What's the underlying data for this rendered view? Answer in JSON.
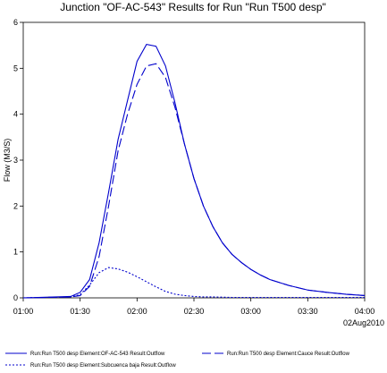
{
  "chart_data": {
    "type": "line",
    "title": "Junction \"OF-AC-543\" Results for Run \"Run T500 desp\"",
    "ylabel": "Flow (M3/S)",
    "xlabel": "",
    "date_label": "02Aug2010",
    "x_ticks": [
      "01:00",
      "01:30",
      "02:00",
      "02:30",
      "03:00",
      "03:30",
      "04:00"
    ],
    "y_ticks": [
      "0",
      "1",
      "2",
      "3",
      "4",
      "5",
      "6"
    ],
    "xlim": [
      "01:00",
      "04:00"
    ],
    "ylim": [
      0,
      6
    ],
    "grid": false,
    "legend_position": "bottom",
    "line_color": "#0000cc",
    "series": [
      {
        "name": "Run:Run T500 desp Element:OF-AC-543 Result:Outflow",
        "style": "solid",
        "x": [
          "01:00",
          "01:25",
          "01:30",
          "01:35",
          "01:40",
          "01:45",
          "01:50",
          "01:55",
          "02:00",
          "02:05",
          "02:10",
          "02:15",
          "02:20",
          "02:25",
          "02:30",
          "02:35",
          "02:40",
          "02:45",
          "02:50",
          "02:55",
          "03:00",
          "03:05",
          "03:10",
          "03:20",
          "03:30",
          "03:40",
          "03:50",
          "04:00"
        ],
        "values": [
          0,
          0.03,
          0.12,
          0.4,
          1.2,
          2.3,
          3.45,
          4.3,
          5.15,
          5.52,
          5.48,
          5.05,
          4.25,
          3.35,
          2.6,
          2.0,
          1.55,
          1.2,
          0.95,
          0.77,
          0.62,
          0.5,
          0.4,
          0.27,
          0.17,
          0.12,
          0.08,
          0.05
        ]
      },
      {
        "name": "Run:Run T500 desp Element:Cauce Result:Outflow",
        "style": "dashed",
        "x": [
          "01:00",
          "01:25",
          "01:30",
          "01:35",
          "01:40",
          "01:45",
          "01:50",
          "01:55",
          "02:00",
          "02:05",
          "02:10",
          "02:15",
          "02:20",
          "02:25",
          "02:30",
          "02:35",
          "02:40",
          "02:45",
          "02:50",
          "02:55",
          "03:00",
          "03:05",
          "03:10",
          "03:20",
          "03:30",
          "03:40",
          "03:50",
          "04:00"
        ],
        "values": [
          0,
          0.02,
          0.05,
          0.25,
          0.9,
          2.0,
          3.2,
          4.0,
          4.65,
          5.05,
          5.1,
          4.8,
          4.15,
          3.35,
          2.6,
          2.0,
          1.55,
          1.2,
          0.95,
          0.77,
          0.62,
          0.5,
          0.4,
          0.27,
          0.17,
          0.12,
          0.08,
          0.05
        ]
      },
      {
        "name": "Run:Run T500 desp Element:Subcuenca baja Result:Outflow",
        "style": "dotted",
        "x": [
          "01:00",
          "01:25",
          "01:30",
          "01:35",
          "01:40",
          "01:45",
          "01:50",
          "01:55",
          "02:00",
          "02:05",
          "02:10",
          "02:15",
          "02:20",
          "02:25",
          "02:30",
          "02:35",
          "02:40",
          "02:50",
          "03:00",
          "03:30",
          "04:00"
        ],
        "values": [
          0,
          0.02,
          0.07,
          0.28,
          0.55,
          0.66,
          0.63,
          0.56,
          0.46,
          0.35,
          0.24,
          0.14,
          0.08,
          0.05,
          0.03,
          0.02,
          0.02,
          0.01,
          0.01,
          0.01,
          0.01
        ]
      }
    ]
  }
}
